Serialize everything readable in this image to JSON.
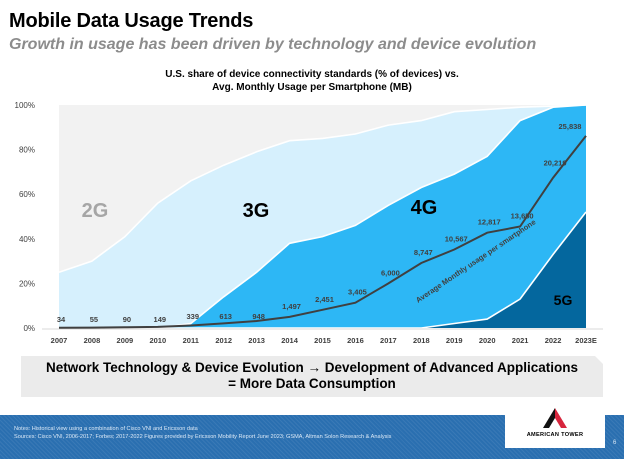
{
  "header": {
    "title": "Mobile Data Usage Trends",
    "subtitle": "Growth in usage has been driven by technology and device evolution"
  },
  "chart_data": {
    "type": "area",
    "title_line1": "U.S. share of device connectivity standards (% of devices) vs.",
    "title_line2": "Avg. Monthly Usage per Smartphone (MB)",
    "categories": [
      "2007",
      "2008",
      "2009",
      "2010",
      "2011",
      "2012",
      "2013",
      "2014",
      "2015",
      "2016",
      "2017",
      "2018",
      "2019",
      "2020",
      "2021",
      "2022",
      "2023E"
    ],
    "y_axis": {
      "label": "% of devices",
      "ticks": [
        "0%",
        "20%",
        "40%",
        "60%",
        "80%",
        "100%"
      ],
      "range": [
        0,
        100
      ]
    },
    "stacked_series": [
      {
        "name": "5G",
        "color": "#04679e",
        "values": [
          0,
          0,
          0,
          0,
          0,
          0,
          0,
          0,
          0,
          0,
          0,
          0,
          2,
          4,
          13,
          33,
          52
        ]
      },
      {
        "name": "4G",
        "color": "#2db7f5",
        "values": [
          0,
          0,
          0,
          0,
          2,
          14,
          25,
          38,
          41,
          46,
          55,
          63,
          67,
          73,
          80,
          66,
          48
        ]
      },
      {
        "name": "3G",
        "color": "#d6f0fd",
        "values": [
          25,
          30,
          41,
          56,
          64,
          59,
          54,
          46,
          44,
          41,
          36,
          30,
          28,
          21,
          6,
          0.5,
          0
        ]
      },
      {
        "name": "2G",
        "color": "#f2f2f2",
        "values": [
          75,
          70,
          59,
          44,
          34,
          27,
          21,
          16,
          15,
          13,
          9,
          7,
          3,
          2,
          1,
          0.5,
          0
        ]
      }
    ],
    "area_labels": [
      {
        "text": "2G",
        "color": "#a6a6a6"
      },
      {
        "text": "3G",
        "color": "#000000"
      },
      {
        "text": "4G",
        "color": "#000000"
      },
      {
        "text": "5G",
        "color": "#000000"
      }
    ],
    "line_series": {
      "name": "Average Monthly usage per smartphone",
      "unit": "MB",
      "color": "#404040",
      "values": [
        34,
        55,
        90,
        149,
        339,
        613,
        948,
        1497,
        2451,
        3405,
        6000,
        8747,
        10567,
        12817,
        13650,
        20219,
        25838
      ],
      "labels": [
        "34",
        "55",
        "90",
        "149",
        "339",
        "613",
        "948",
        "1,497",
        "2,451",
        "3,405",
        "6,000",
        "8,747",
        "10,567",
        "12,817",
        "13,650",
        "20,219",
        "25,838"
      ],
      "range": [
        0,
        30000
      ]
    }
  },
  "callout": {
    "line1": "Network Technology & Device Evolution → Development of Advanced Applications",
    "line2": "= More Data Consumption"
  },
  "footer": {
    "notes": "Notes: Historical view using a combination of Cisco VNI and Ericsson data",
    "sources": "Sources: Cisco VNI, 2006-2017; Forbes; 2017-2022 Figures provided by Ericsson Mobility Report June 2023; GSMA, Altman Solon Research & Analysis",
    "logo_text": "AMERICAN TOWER",
    "page_number": "6"
  }
}
